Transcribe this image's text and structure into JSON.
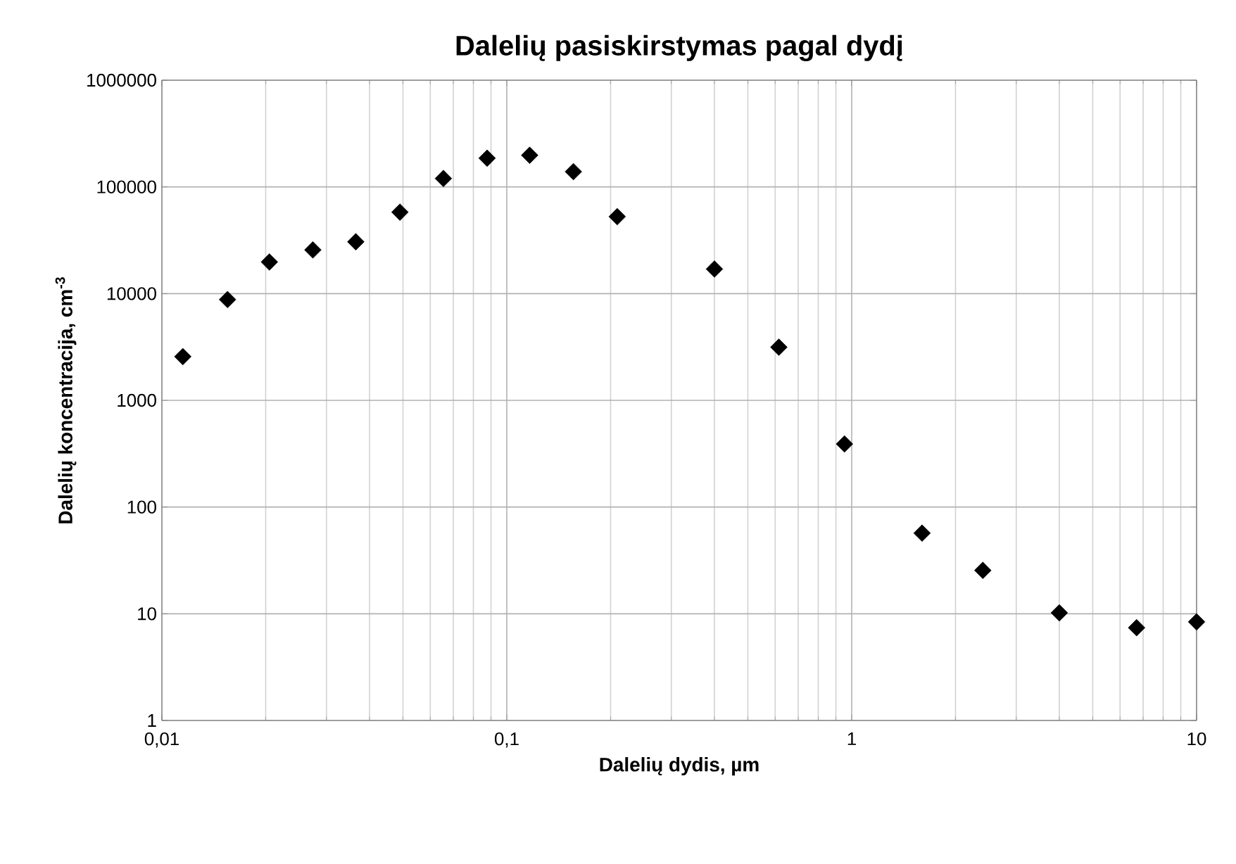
{
  "chart_data": {
    "type": "scatter",
    "title": "Dalelių pasiskirstymas pagal dydį",
    "xlabel": "Dalelių dydis, µm",
    "ylabel": "Dalelių koncentracija, cm$^{-3}$",
    "x": [
      0.0115,
      0.0155,
      0.0205,
      0.0274,
      0.0365,
      0.049,
      0.0655,
      0.0877,
      0.1165,
      0.156,
      0.209,
      0.4,
      0.615,
      0.953,
      1.6,
      2.4,
      4.0,
      6.7,
      10
    ],
    "series": [
      {
        "color": "#000000",
        "values": [
          2570,
          8800,
          19800,
          25700,
          30600,
          58000,
          120000,
          186000,
          198000,
          139000,
          52700,
          17000,
          3150,
          390,
          57,
          25.5,
          10.2,
          7.4,
          8.4
        ]
      }
    ],
    "log": "xy",
    "xlim": [
      0.01,
      10
    ],
    "ylim": [
      1,
      1000000
    ],
    "xticks": [
      {
        "value": 0.01,
        "label": "0,01"
      },
      {
        "value": 0.1,
        "label": "0,1"
      },
      1,
      10
    ],
    "yticks": [
      1,
      10,
      100,
      1000,
      10000,
      100000,
      1000000
    ],
    "grid": true,
    "marker": "diamond"
  }
}
